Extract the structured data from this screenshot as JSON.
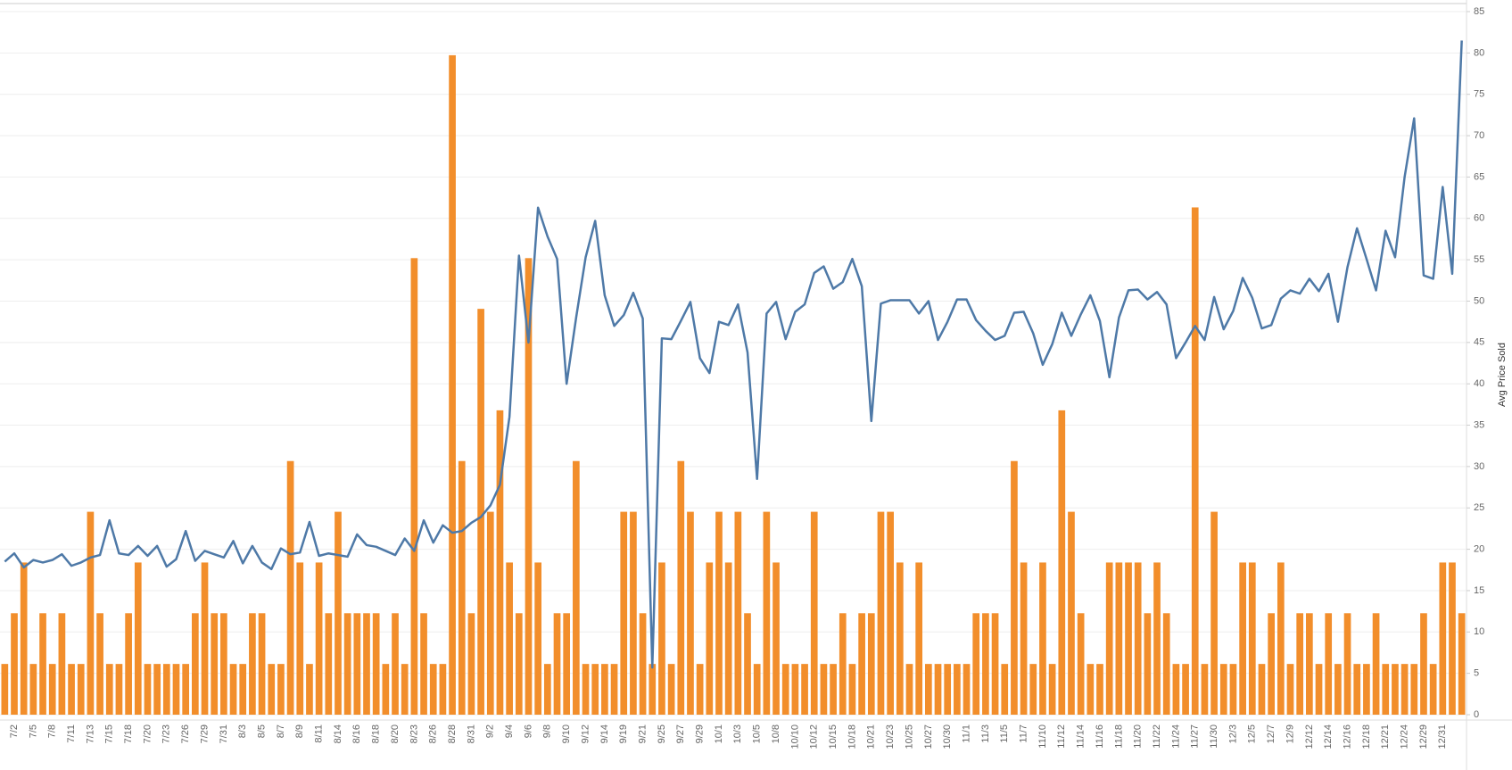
{
  "chart_data": {
    "type": "bar",
    "y2_label": "Avg Price Sold",
    "categories": [
      null,
      "7/2",
      null,
      "7/5",
      null,
      "7/8",
      null,
      "7/11",
      null,
      "7/13",
      null,
      "7/15",
      null,
      "7/18",
      null,
      "7/20",
      null,
      "7/23",
      null,
      "7/26",
      null,
      "7/29",
      null,
      "7/31",
      null,
      "8/3",
      null,
      "8/5",
      null,
      "8/7",
      null,
      "8/9",
      null,
      "8/11",
      null,
      "8/14",
      null,
      "8/16",
      null,
      "8/18",
      null,
      "8/20",
      null,
      "8/23",
      null,
      "8/26",
      null,
      "8/28",
      null,
      "8/31",
      null,
      "9/2",
      null,
      "9/4",
      null,
      "9/6",
      null,
      "9/8",
      null,
      "9/10",
      null,
      "9/12",
      null,
      "9/14",
      null,
      "9/19",
      null,
      "9/21",
      null,
      "9/25",
      null,
      "9/27",
      null,
      "9/29",
      null,
      "10/1",
      null,
      "10/3",
      null,
      "10/5",
      null,
      "10/8",
      null,
      "10/10",
      null,
      "10/12",
      null,
      "10/15",
      null,
      "10/18",
      null,
      "10/21",
      null,
      "10/23",
      null,
      "10/25",
      null,
      "10/27",
      null,
      "10/30",
      null,
      "11/1",
      null,
      "11/3",
      null,
      "11/5",
      null,
      "11/7",
      null,
      "11/10",
      null,
      "11/12",
      null,
      "11/14",
      null,
      "11/16",
      null,
      "11/18",
      null,
      "11/20",
      null,
      "11/22",
      null,
      "11/24",
      null,
      "11/27",
      null,
      "11/30",
      null,
      "12/3",
      null,
      "12/5",
      null,
      "12/7",
      null,
      "12/9",
      null,
      "12/12",
      null,
      "12/14",
      null,
      "12/16",
      null,
      "12/18",
      null,
      "12/21",
      null,
      "12/24",
      null,
      "12/29",
      null,
      "12/31",
      null,
      null
    ],
    "series": [
      {
        "type": "bar",
        "color": "#f28e2b",
        "values": [
          1,
          2,
          3,
          1,
          2,
          1,
          2,
          1,
          1,
          4,
          2,
          1,
          1,
          2,
          3,
          1,
          1,
          1,
          1,
          1,
          2,
          3,
          2,
          2,
          1,
          1,
          2,
          2,
          1,
          1,
          5,
          3,
          1,
          3,
          2,
          4,
          2,
          2,
          2,
          2,
          1,
          2,
          1,
          9,
          2,
          1,
          1,
          13,
          5,
          2,
          8,
          4,
          6,
          3,
          2,
          9,
          3,
          1,
          2,
          2,
          5,
          1,
          1,
          1,
          1,
          4,
          4,
          2,
          1,
          3,
          1,
          5,
          4,
          1,
          3,
          4,
          3,
          4,
          2,
          1,
          4,
          3,
          1,
          1,
          1,
          4,
          1,
          1,
          2,
          1,
          2,
          2,
          4,
          4,
          3,
          1,
          3,
          1,
          1,
          1,
          1,
          1,
          2,
          2,
          2,
          1,
          5,
          3,
          1,
          3,
          1,
          6,
          4,
          2,
          1,
          1,
          3,
          3,
          3,
          3,
          2,
          3,
          2,
          1,
          1,
          10,
          1,
          4,
          1,
          1,
          3,
          3,
          1,
          2,
          3,
          1,
          2,
          2,
          1,
          2,
          1,
          2,
          1,
          1,
          2,
          1,
          1,
          1,
          1,
          2,
          1,
          3,
          3,
          2
        ]
      },
      {
        "type": "line",
        "axis": "y2",
        "color": "#4e79a7",
        "values": [
          18.5,
          19.5,
          17.8,
          18.7,
          18.4,
          18.7,
          19.4,
          18,
          18.4,
          19,
          19.3,
          23.5,
          19.5,
          19.3,
          20.4,
          19.2,
          20.4,
          17.9,
          18.8,
          22.2,
          18.6,
          19.8,
          19.4,
          19,
          21,
          18.3,
          20.4,
          18.4,
          17.6,
          20.1,
          19.4,
          19.6,
          23.3,
          19.2,
          19.5,
          19.3,
          19.1,
          21.8,
          20.5,
          20.3,
          19.8,
          19.3,
          21.3,
          19.8,
          23.5,
          20.8,
          22.9,
          22,
          22.2,
          23.2,
          23.9,
          25.3,
          27.8,
          36,
          55.5,
          45,
          61.3,
          57.8,
          55.1,
          40,
          48,
          55.3,
          59.7,
          50.7,
          47,
          48.3,
          51,
          47.9,
          5.7,
          45.5,
          45.4,
          47.6,
          49.9,
          43.1,
          41.3,
          47.5,
          47.1,
          49.6,
          43.8,
          28.5,
          48.5,
          49.9,
          45.4,
          48.7,
          49.6,
          53.4,
          54.2,
          51.5,
          52.3,
          55.1,
          51.8,
          35.5,
          49.7,
          50.1,
          50.1,
          50.1,
          48.5,
          50,
          45.3,
          47.5,
          50.2,
          50.2,
          47.7,
          46.4,
          45.3,
          45.8,
          48.6,
          48.7,
          46.1,
          42.3,
          44.8,
          48.6,
          45.8,
          48.4,
          50.7,
          47.6,
          40.8,
          48,
          51.3,
          51.4,
          50.2,
          51.1,
          49.6,
          43.1,
          45,
          47,
          45.3,
          50.5,
          46.6,
          48.8,
          52.8,
          50.4,
          46.7,
          47.1,
          50.3,
          51.3,
          50.9,
          52.7,
          51.2,
          53.3,
          47.5,
          54.1,
          58.8,
          55.1,
          51.3,
          58.5,
          55.3,
          65,
          72.1,
          53.1,
          52.7,
          63.8,
          53.3,
          81.5
        ]
      }
    ],
    "ylim": [
      0,
      13.86
    ],
    "y2lim": [
      0,
      85
    ],
    "y2ticks": [
      0,
      5,
      10,
      15,
      20,
      25,
      30,
      35,
      40,
      45,
      50,
      55,
      60,
      65,
      70,
      75,
      80,
      85
    ],
    "grid": true
  }
}
